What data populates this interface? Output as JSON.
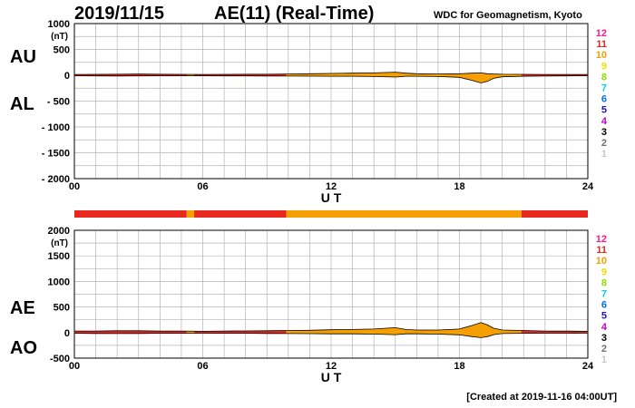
{
  "header": {
    "date": "2019/11/15",
    "title": "AE(11) (Real-Time)",
    "source": "WDC for Geomagnetism, Kyoto"
  },
  "footer": {
    "created": "[Created at 2019-11-16 04:00UT]"
  },
  "legend_levels": [
    {
      "label": "12",
      "color": "#ff1a8c"
    },
    {
      "label": "11",
      "color": "#e8281e"
    },
    {
      "label": "10",
      "color": "#f5a000"
    },
    {
      "label": "9",
      "color": "#f0e000"
    },
    {
      "label": "8",
      "color": "#8ee000"
    },
    {
      "label": "7",
      "color": "#00d0e8"
    },
    {
      "label": "6",
      "color": "#0070e8"
    },
    {
      "label": "5",
      "color": "#2010c0"
    },
    {
      "label": "4",
      "color": "#c000d0"
    },
    {
      "label": "3",
      "color": "#000000"
    },
    {
      "label": "2",
      "color": "#707070"
    },
    {
      "label": "1",
      "color": "#c8c8c8"
    }
  ],
  "status_bar": {
    "segments": [
      {
        "from": 0,
        "to": 5.25,
        "level": "11"
      },
      {
        "from": 5.25,
        "to": 5.6,
        "level": "10"
      },
      {
        "from": 5.6,
        "to": 9.9,
        "level": "11"
      },
      {
        "from": 9.9,
        "to": 20.9,
        "level": "10"
      },
      {
        "from": 20.9,
        "to": 24,
        "level": "11"
      }
    ]
  },
  "chart_data": [
    {
      "type": "line",
      "name": "upper",
      "series_labels": [
        "AU",
        "AL"
      ],
      "unit": "(nT)",
      "xlabel": "U T",
      "xticks": [
        "00",
        "06",
        "12",
        "18",
        "24"
      ],
      "xlim": [
        0,
        24
      ],
      "ylim": [
        -2000,
        1000
      ],
      "yticks": [
        "1000",
        "500",
        "0",
        "- 500",
        "- 1000",
        "- 1500",
        "- 2000"
      ],
      "ytick_values": [
        1000,
        500,
        0,
        -500,
        -1000,
        -1500,
        -2000
      ],
      "grid": true,
      "x": [
        0,
        1,
        2,
        3,
        4,
        5,
        6,
        7,
        8,
        9,
        10,
        11,
        12,
        13,
        14,
        15,
        15.5,
        16,
        17,
        18,
        18.6,
        19,
        19.3,
        19.6,
        20,
        21,
        22,
        23,
        24
      ],
      "upper": [
        15,
        18,
        20,
        22,
        20,
        18,
        15,
        18,
        20,
        20,
        25,
        30,
        35,
        40,
        45,
        60,
        40,
        30,
        25,
        30,
        40,
        45,
        30,
        25,
        20,
        18,
        15,
        15,
        15
      ],
      "lower": [
        -10,
        -12,
        -14,
        -12,
        -10,
        -10,
        -10,
        -12,
        -12,
        -14,
        -15,
        -18,
        -20,
        -20,
        -25,
        -35,
        -20,
        -20,
        -25,
        -40,
        -100,
        -150,
        -120,
        -60,
        -30,
        -20,
        -15,
        -12,
        -10
      ]
    },
    {
      "type": "line",
      "name": "lower",
      "series_labels": [
        "AE",
        "AO"
      ],
      "unit": "(nT)",
      "xlabel": "U T",
      "xticks": [
        "00",
        "06",
        "12",
        "18",
        "24"
      ],
      "xlim": [
        0,
        24
      ],
      "ylim": [
        -500,
        2000
      ],
      "yticks": [
        "2000",
        "1500",
        "1000",
        "500",
        "0",
        "-500"
      ],
      "ytick_values": [
        2000,
        1500,
        1000,
        500,
        0,
        -500
      ],
      "grid": true,
      "x": [
        0,
        1,
        2,
        3,
        4,
        5,
        6,
        7,
        8,
        9,
        10,
        11,
        12,
        13,
        14,
        15,
        15.5,
        16,
        17,
        18,
        18.6,
        19,
        19.3,
        19.6,
        20,
        21,
        22,
        23,
        24
      ],
      "upper": [
        30,
        30,
        35,
        35,
        30,
        30,
        25,
        30,
        32,
        35,
        40,
        45,
        55,
        60,
        70,
        95,
        60,
        50,
        50,
        70,
        140,
        195,
        150,
        85,
        50,
        40,
        30,
        28,
        25
      ],
      "lower": [
        -15,
        -18,
        -20,
        -18,
        -15,
        -15,
        -12,
        -15,
        -15,
        -18,
        -20,
        -22,
        -25,
        -25,
        -30,
        -40,
        -25,
        -25,
        -30,
        -45,
        -80,
        -100,
        -80,
        -40,
        -20,
        -15,
        -12,
        -12,
        -10
      ]
    }
  ]
}
